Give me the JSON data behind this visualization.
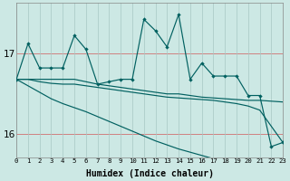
{
  "bg_color": "#cce8e4",
  "line_color": "#006060",
  "grid_h_color": "#d08080",
  "grid_v_color": "#a8c8c4",
  "xlabel": "Humidex (Indice chaleur)",
  "xlim": [
    0,
    23
  ],
  "ylim": [
    15.72,
    17.62
  ],
  "yticks": [
    16,
    17
  ],
  "xticks": [
    0,
    1,
    2,
    3,
    4,
    5,
    6,
    7,
    8,
    9,
    10,
    11,
    12,
    13,
    14,
    15,
    16,
    17,
    18,
    19,
    20,
    21,
    22,
    23
  ],
  "y_jagged": [
    16.68,
    17.12,
    16.82,
    16.82,
    16.82,
    17.22,
    17.05,
    16.62,
    16.65,
    16.68,
    16.68,
    17.42,
    17.28,
    17.08,
    17.48,
    16.68,
    16.88,
    16.72,
    16.72,
    16.72,
    16.48,
    16.48,
    15.85,
    15.9
  ],
  "y_flat1": [
    16.68,
    16.68,
    16.68,
    16.68,
    16.68,
    16.68,
    16.65,
    16.62,
    16.6,
    16.58,
    16.56,
    16.54,
    16.52,
    16.5,
    16.5,
    16.48,
    16.46,
    16.45,
    16.44,
    16.43,
    16.42,
    16.42,
    16.41,
    16.4
  ],
  "y_flat2": [
    16.68,
    16.68,
    16.65,
    16.63,
    16.62,
    16.62,
    16.6,
    16.58,
    16.56,
    16.54,
    16.52,
    16.5,
    16.48,
    16.46,
    16.45,
    16.44,
    16.43,
    16.42,
    16.4,
    16.38,
    16.35,
    16.3,
    16.1,
    15.9
  ],
  "y_decline": [
    16.68,
    16.6,
    16.52,
    16.44,
    16.38,
    16.33,
    16.28,
    16.22,
    16.16,
    16.1,
    16.04,
    15.98,
    15.92,
    15.87,
    15.82,
    15.78,
    15.74,
    15.7,
    15.67,
    15.64,
    15.61,
    15.58,
    15.56,
    15.55
  ]
}
